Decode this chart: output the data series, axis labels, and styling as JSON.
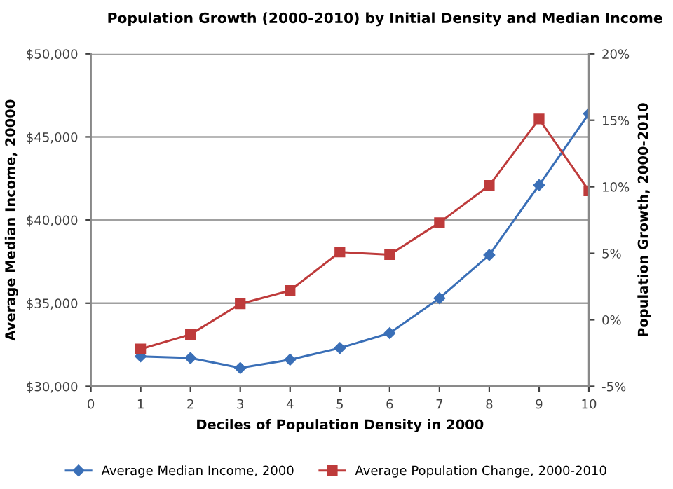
{
  "chart_data": {
    "type": "line",
    "title": "Population Growth (2000-2010) by Initial Density and Median Income",
    "xlabel": "Deciles of Population Density in 2000",
    "ylabel": "Average Median Income, 20000",
    "y2label": "Population Growth, 2000-2010",
    "x": [
      1,
      2,
      3,
      4,
      5,
      6,
      7,
      8,
      9,
      10
    ],
    "series": [
      {
        "name": "Average Median Income, 2000",
        "color": "#3a6fb7",
        "marker": "diamond",
        "values": [
          31800,
          31700,
          31100,
          31600,
          32300,
          33200,
          35300,
          37900,
          42100,
          46400
        ]
      },
      {
        "name": "Average Population Change, 2000-2010",
        "color": "#be3b3b",
        "marker": "square",
        "axis": "y2",
        "values": [
          -2.2,
          -1.1,
          1.2,
          2.2,
          5.1,
          4.9,
          7.3,
          10.1,
          15.1,
          9.7
        ]
      }
    ],
    "xlim": [
      0,
      10
    ],
    "xticks": [
      0,
      1,
      2,
      3,
      4,
      5,
      6,
      7,
      8,
      9,
      10
    ],
    "ylim": [
      30000,
      50000
    ],
    "yticks": [
      {
        "value": 30000,
        "label": "$30,000"
      },
      {
        "value": 35000,
        "label": "$35,000"
      },
      {
        "value": 40000,
        "label": "$40,000"
      },
      {
        "value": 45000,
        "label": "$45,000"
      },
      {
        "value": 50000,
        "label": "$50,000"
      }
    ],
    "y2lim": [
      -5,
      20
    ],
    "y2ticks": [
      {
        "value": -5,
        "label": "-5%"
      },
      {
        "value": 0,
        "label": "0%"
      },
      {
        "value": 5,
        "label": "5%"
      },
      {
        "value": 10,
        "label": "10%"
      },
      {
        "value": 15,
        "label": "15%"
      },
      {
        "value": 20,
        "label": "20%"
      }
    ],
    "grid": "y",
    "legend": "bottom",
    "line_style": "solid"
  }
}
